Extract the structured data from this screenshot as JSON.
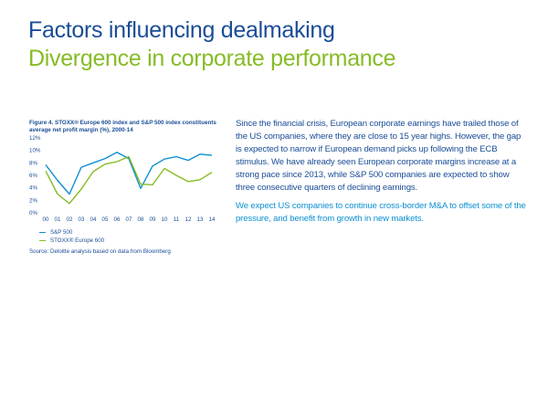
{
  "header": {
    "title": "Factors influencing dealmaking",
    "subtitle": "Divergence in corporate performance"
  },
  "figure": {
    "caption": "Figure 4. STOXX® Europe 600 index and S&P 500 index constituents average net profit margin (%), 2000-14",
    "source": "Source: Deloitte analysis based on data from Bloomberg"
  },
  "chart_data": {
    "type": "line",
    "title": "Figure 4. STOXX® Europe 600 index and S&P 500 index constituents average net profit margin (%), 2000-14",
    "x": [
      "00",
      "01",
      "02",
      "03",
      "04",
      "05",
      "06",
      "07",
      "08",
      "09",
      "10",
      "11",
      "12",
      "13",
      "14"
    ],
    "y_ticks": [
      "0%",
      "2%",
      "4%",
      "6%",
      "8%",
      "10%",
      "12%"
    ],
    "ylim": [
      0,
      12
    ],
    "series": [
      {
        "name": "S&P 500",
        "color": "#0d8fd2",
        "x": [
          0,
          1,
          2,
          3,
          4,
          5,
          6,
          7,
          8,
          9,
          10,
          11,
          12,
          13,
          14
        ],
        "values": [
          7.7,
          5.2,
          3.0,
          7.3,
          8.0,
          8.7,
          9.7,
          8.7,
          3.9,
          7.5,
          8.6,
          9.0,
          8.4,
          9.4,
          9.2
        ]
      },
      {
        "name": "STOXX® Europe 600",
        "color": "#86bc25",
        "x": [
          0,
          1,
          2,
          3,
          4,
          5,
          6,
          7,
          8,
          9,
          10,
          11,
          12,
          13,
          14
        ],
        "values": [
          6.7,
          3.0,
          1.5,
          3.8,
          6.6,
          7.8,
          8.2,
          9.0,
          4.6,
          4.5,
          7.1,
          6.0,
          5.0,
          5.3,
          6.5
        ]
      }
    ],
    "grid": false
  },
  "body": {
    "paragraph1": "Since the financial crisis, European corporate earnings have trailed those of the US companies, where they are close to 15 year highs. However, the gap is expected to narrow if European demand picks up following the ECB stimulus. We have already seen European corporate margins increase at a strong pace since 2013, while S&P 500 companies are expected to show three consecutive quarters of declining earnings.",
    "paragraph2": "We expect US companies to continue cross-border M&A to offset some of the pressure, and benefit from growth in new markets."
  }
}
